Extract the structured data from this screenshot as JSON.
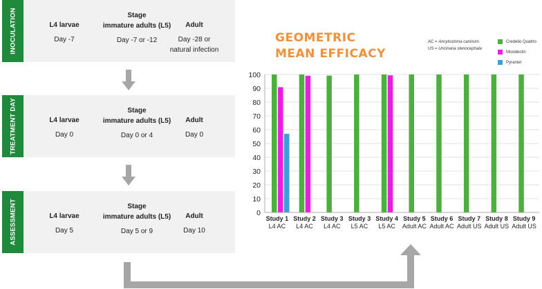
{
  "panels": [
    {
      "section": "INOCULATION",
      "columns": [
        {
          "header": "L4 larvae",
          "header2": "",
          "value": "Day -7",
          "value2": ""
        },
        {
          "header": "Stage",
          "header2": "immature adults (L5)",
          "value": "Day -7 or -12",
          "value2": ""
        },
        {
          "header": "Adult",
          "header2": "",
          "value": "Day -28 or",
          "value2": "natural infection"
        }
      ]
    },
    {
      "section": "TREATMENT DAY",
      "columns": [
        {
          "header": "L4 larvae",
          "header2": "",
          "value": "Day 0",
          "value2": ""
        },
        {
          "header": "Stage",
          "header2": "immature adults (L5)",
          "value": "Day 0 or 4",
          "value2": ""
        },
        {
          "header": "Adult",
          "header2": "",
          "value": "Day 0",
          "value2": ""
        }
      ]
    },
    {
      "section": "ASSESSMENT",
      "columns": [
        {
          "header": "L4 larvae",
          "header2": "",
          "value": "Day 5",
          "value2": ""
        },
        {
          "header": "Stage",
          "header2": "immature adults (L5)",
          "value": "Day 5 or 9",
          "value2": ""
        },
        {
          "header": "Adult",
          "header2": "",
          "value": "Day 10",
          "value2": ""
        }
      ]
    }
  ],
  "colors": {
    "sidebar": "#1f8a3c",
    "panel": "#f1f1f1",
    "arrow": "#a6a6a6",
    "title": "#f0913a"
  },
  "notes": {
    "ac_prefix": "AC = ",
    "ac_name": "Ancylostoma caninum",
    "us_prefix": "US = ",
    "us_name": "Uncinaria stenocephala"
  },
  "chart_data": {
    "type": "bar",
    "title_line1": "GEOMETRIC",
    "title_line2": "MEAN EFFICACY",
    "categories": [
      {
        "study": "Study 1",
        "group": "L4 AC"
      },
      {
        "study": "Study 2",
        "group": "L4 AC"
      },
      {
        "study": "Study 3",
        "group": "L4 AC"
      },
      {
        "study": "Study 3",
        "group": "L5 AC"
      },
      {
        "study": "Study 4",
        "group": "L5 AC"
      },
      {
        "study": "Study 5",
        "group": "Adult AC"
      },
      {
        "study": "Study 6",
        "group": "Adult AC"
      },
      {
        "study": "Study 7",
        "group": "Adult US"
      },
      {
        "study": "Study 8",
        "group": "Adult US"
      },
      {
        "study": "Study 9",
        "group": "Adult US"
      }
    ],
    "series": [
      {
        "name": "Credelio Quattro",
        "color": "#4caf3e",
        "values": [
          100,
          100,
          99.2,
          100,
          100,
          100,
          100,
          100,
          100,
          100
        ]
      },
      {
        "name": "Moxidectin",
        "color": "#e91ee0",
        "values": [
          90.8,
          99.1,
          null,
          null,
          99.4,
          null,
          null,
          null,
          null,
          null
        ]
      },
      {
        "name": "Pyrantel",
        "color": "#3aa0dc",
        "values": [
          57,
          null,
          null,
          null,
          null,
          null,
          null,
          null,
          null,
          null
        ]
      }
    ],
    "ylim": [
      0,
      100
    ],
    "yticks": [
      0,
      10,
      20,
      30,
      40,
      50,
      60,
      70,
      80,
      90,
      100
    ],
    "grid": true,
    "legend_position": "top-right"
  }
}
